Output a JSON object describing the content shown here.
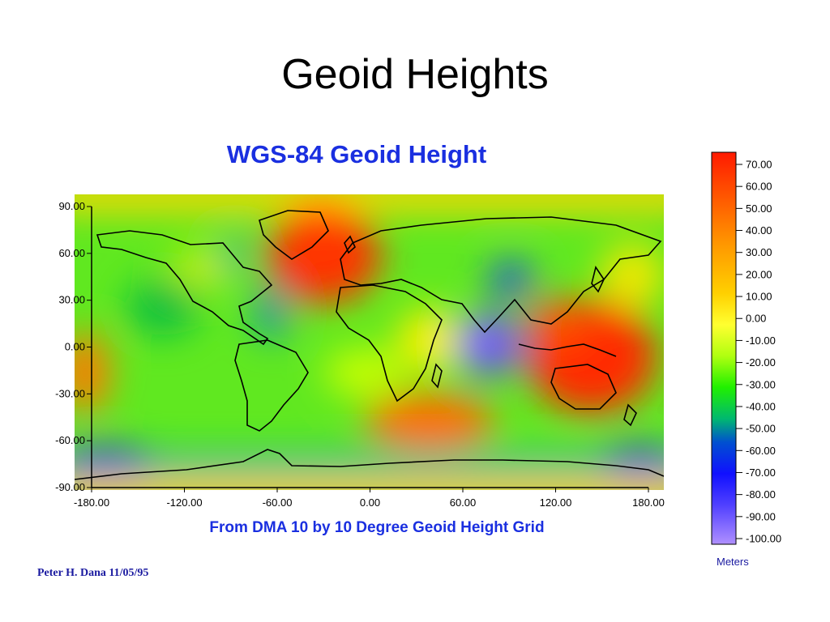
{
  "slide": {
    "title": "Geoid Heights",
    "credit": "Peter H. Dana 11/05/95"
  },
  "map": {
    "title": "WGS-84 Geoid Height",
    "subtitle": "From DMA 10 by 10 Degree Geoid Height Grid",
    "x_ticks": [
      "-180.00",
      "-120.00",
      "-60.00",
      "0.00",
      "60.00",
      "120.00",
      "180.00"
    ],
    "y_ticks": [
      "90.00",
      "60.00",
      "30.00",
      "0.00",
      "-30.00",
      "-60.00",
      "-90.00"
    ],
    "xlim": [
      -180,
      180
    ],
    "ylim": [
      -90,
      90
    ],
    "colors": {
      "high": "#ff2a00",
      "mid": "#ffff40",
      "low": "#8060ff",
      "coastline": "#000000"
    }
  },
  "legend": {
    "unit": "Meters",
    "labels": [
      "70.00",
      "60.00",
      "50.00",
      "40.00",
      "30.00",
      "20.00",
      "10.00",
      "0.00",
      "-10.00",
      "-20.00",
      "-30.00",
      "-40.00",
      "-50.00",
      "-60.00",
      "-70.00",
      "-80.00",
      "-90.00",
      "-100.00"
    ],
    "range": [
      -100,
      70
    ]
  }
}
